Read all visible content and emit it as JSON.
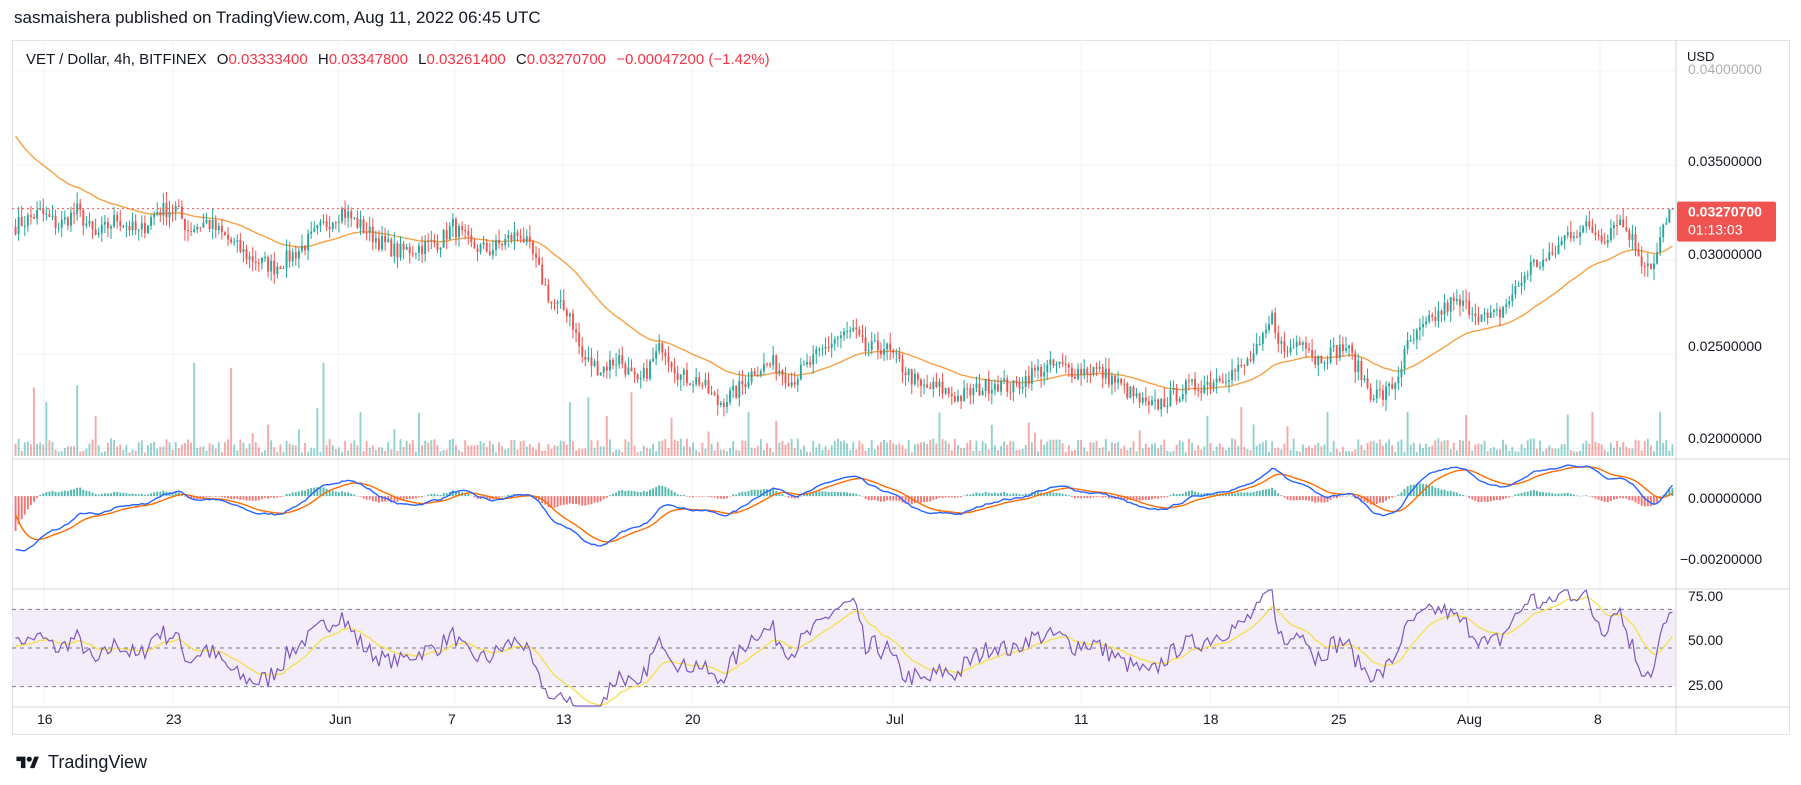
{
  "header": {
    "publisher": "sasmaishera published on TradingView.com, Aug 11, 2022 06:45 UTC"
  },
  "legend": {
    "symbol": "VET / Dollar, 4h, BITFINEX",
    "o_label": "O",
    "o_value": "0.03333400",
    "h_label": "H",
    "h_value": "0.03347800",
    "l_label": "L",
    "l_value": "0.03261400",
    "c_label": "C",
    "c_value": "0.03270700",
    "change": "−0.00047200 (−1.42%)"
  },
  "price_axis": {
    "currency": "USD",
    "ticks": [
      "0.04000000",
      "0.03500000",
      "0.03000000",
      "0.02500000",
      "0.02000000"
    ],
    "last_price_label": "0.03270700",
    "countdown_label": "01:13:03"
  },
  "macd_axis": {
    "ticks": [
      "0.00000000",
      "−0.00200000"
    ]
  },
  "rsi_axis": {
    "ticks": [
      "75.00",
      "50.00",
      "25.00"
    ]
  },
  "time_axis": {
    "ticks": [
      "16",
      "23",
      "Jun",
      "7",
      "13",
      "20",
      "Jul",
      "11",
      "18",
      "25",
      "Aug",
      "8"
    ]
  },
  "logo": {
    "text": "TradingView"
  },
  "colors": {
    "up": "#26a69a",
    "down": "#ef5350",
    "ma": "#f7a144",
    "macd": "#2962ff",
    "signal": "#ff6d00",
    "rsi": "#7e57c2",
    "rsi_ma": "#f5e04a",
    "rsi_band": "#ede7f6",
    "last_price_badge": "#f05350",
    "grid": "#f0f3fa",
    "text": "#131722"
  },
  "chart_data": {
    "type": "candlestick",
    "timeframe": "4h",
    "y_range": [
      0.0195,
      0.041
    ],
    "last_price": 0.032707,
    "price_anchors": [
      [
        0,
        0.0318
      ],
      [
        8,
        0.0325
      ],
      [
        14,
        0.0318
      ],
      [
        20,
        0.0326
      ],
      [
        26,
        0.0312
      ],
      [
        33,
        0.0322
      ],
      [
        40,
        0.0314
      ],
      [
        46,
        0.0326
      ],
      [
        52,
        0.0327
      ],
      [
        56,
        0.0316
      ],
      [
        62,
        0.032
      ],
      [
        68,
        0.0312
      ],
      [
        76,
        0.0301
      ],
      [
        84,
        0.0296
      ],
      [
        92,
        0.0305
      ],
      [
        100,
        0.0318
      ],
      [
        106,
        0.0326
      ],
      [
        112,
        0.0318
      ],
      [
        118,
        0.031
      ],
      [
        124,
        0.0304
      ],
      [
        132,
        0.0307
      ],
      [
        138,
        0.031
      ],
      [
        142,
        0.0318
      ],
      [
        148,
        0.0307
      ],
      [
        154,
        0.0305
      ],
      [
        160,
        0.0311
      ],
      [
        164,
        0.0314
      ],
      [
        168,
        0.0302
      ],
      [
        174,
        0.0277
      ],
      [
        180,
        0.0272
      ],
      [
        184,
        0.0248
      ],
      [
        190,
        0.0242
      ],
      [
        196,
        0.0248
      ],
      [
        202,
        0.0233
      ],
      [
        210,
        0.0255
      ],
      [
        216,
        0.0238
      ],
      [
        222,
        0.0236
      ],
      [
        228,
        0.0224
      ],
      [
        234,
        0.023
      ],
      [
        240,
        0.0242
      ],
      [
        246,
        0.0245
      ],
      [
        252,
        0.0236
      ],
      [
        258,
        0.0245
      ],
      [
        266,
        0.0258
      ],
      [
        272,
        0.0262
      ],
      [
        276,
        0.0252
      ],
      [
        282,
        0.0254
      ],
      [
        288,
        0.0243
      ],
      [
        294,
        0.0232
      ],
      [
        300,
        0.0232
      ],
      [
        306,
        0.0227
      ],
      [
        312,
        0.0231
      ],
      [
        318,
        0.0235
      ],
      [
        324,
        0.0232
      ],
      [
        330,
        0.024
      ],
      [
        338,
        0.0244
      ],
      [
        344,
        0.0241
      ],
      [
        350,
        0.0242
      ],
      [
        356,
        0.0237
      ],
      [
        362,
        0.0229
      ],
      [
        368,
        0.0221
      ],
      [
        374,
        0.0226
      ],
      [
        380,
        0.0232
      ],
      [
        386,
        0.0234
      ],
      [
        392,
        0.0239
      ],
      [
        398,
        0.0242
      ],
      [
        404,
        0.0253
      ],
      [
        408,
        0.0269
      ],
      [
        412,
        0.025
      ],
      [
        418,
        0.026
      ],
      [
        422,
        0.0247
      ],
      [
        426,
        0.025
      ],
      [
        432,
        0.0254
      ],
      [
        436,
        0.0242
      ],
      [
        440,
        0.023
      ],
      [
        444,
        0.0228
      ],
      [
        448,
        0.0235
      ],
      [
        452,
        0.0254
      ],
      [
        458,
        0.0265
      ],
      [
        466,
        0.0277
      ],
      [
        472,
        0.0275
      ],
      [
        478,
        0.0268
      ],
      [
        482,
        0.0272
      ],
      [
        488,
        0.0286
      ],
      [
        492,
        0.0297
      ],
      [
        498,
        0.03
      ],
      [
        504,
        0.0314
      ],
      [
        510,
        0.0317
      ],
      [
        516,
        0.0312
      ],
      [
        520,
        0.0322
      ],
      [
        524,
        0.0314
      ],
      [
        528,
        0.03
      ],
      [
        532,
        0.0297
      ],
      [
        535,
        0.0316
      ],
      [
        538,
        0.0327
      ]
    ],
    "ma_start": 0.0368,
    "volume": {
      "spikes": [
        [
          6,
          0.7
        ],
        [
          10,
          0.55
        ],
        [
          20,
          0.72
        ],
        [
          58,
          0.95
        ],
        [
          70,
          0.9
        ],
        [
          100,
          0.95
        ],
        [
          112,
          0.45
        ],
        [
          180,
          0.55
        ],
        [
          186,
          0.6
        ],
        [
          200,
          0.65
        ],
        [
          238,
          0.45
        ],
        [
          398,
          0.5
        ],
        [
          426,
          0.45
        ],
        [
          452,
          0.45
        ],
        [
          512,
          0.45
        ],
        [
          534,
          0.45
        ]
      ],
      "base": 0.12
    },
    "macd": {
      "y_range": [
        -0.0028,
        0.0011
      ]
    },
    "rsi": {
      "y_range": [
        20,
        80
      ],
      "upper_band": 70,
      "mid": 50,
      "lower_band": 30
    }
  }
}
